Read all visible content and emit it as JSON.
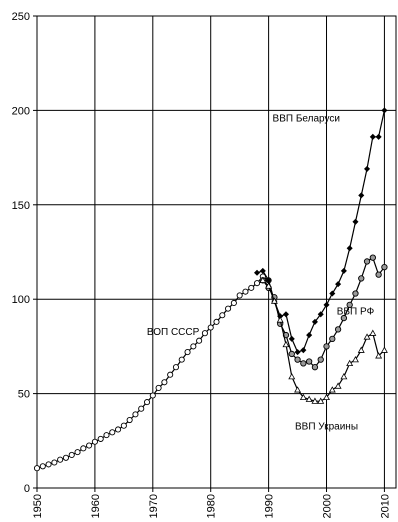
{
  "chart_data": {
    "type": "line",
    "title": "",
    "xlabel": "",
    "ylabel": "",
    "xlim": [
      1950,
      2012
    ],
    "ylim": [
      0,
      250
    ],
    "grid": true,
    "x_ticks": [
      "1950",
      "1960",
      "1970",
      "1980",
      "1990",
      "2000",
      "2010"
    ],
    "y_ticks": [
      "0",
      "50",
      "100",
      "150",
      "200",
      "250"
    ],
    "annotations": [
      {
        "text": "ВВП  Беларуси",
        "x": 1996.5,
        "y": 194
      },
      {
        "text": "ВВП РФ",
        "x": 2005,
        "y": 92
      },
      {
        "text": "ВОП СССР",
        "x": 1973.5,
        "y": 81
      },
      {
        "text": "ВВП Украины",
        "x": 2000,
        "y": 31
      }
    ],
    "series": [
      {
        "marker": "open-circle",
        "color": "#000000",
        "points": [
          [
            1950,
            10.5
          ],
          [
            1951,
            11.5
          ],
          [
            1952,
            12.5
          ],
          [
            1953,
            13.5
          ],
          [
            1954,
            15
          ],
          [
            1955,
            16
          ],
          [
            1956,
            17.5
          ],
          [
            1957,
            19
          ],
          [
            1958,
            21
          ],
          [
            1959,
            22.5
          ],
          [
            1960,
            24.5
          ],
          [
            1961,
            26
          ],
          [
            1962,
            28
          ],
          [
            1963,
            29.5
          ],
          [
            1964,
            31
          ],
          [
            1965,
            33
          ],
          [
            1966,
            36
          ],
          [
            1967,
            39
          ],
          [
            1968,
            42
          ],
          [
            1969,
            45.5
          ],
          [
            1970,
            49
          ],
          [
            1971,
            53
          ],
          [
            1972,
            56
          ],
          [
            1973,
            60
          ],
          [
            1974,
            64
          ],
          [
            1975,
            68
          ],
          [
            1976,
            72
          ],
          [
            1977,
            75
          ],
          [
            1978,
            78
          ],
          [
            1979,
            82
          ],
          [
            1980,
            85
          ],
          [
            1981,
            88
          ],
          [
            1982,
            91.5
          ],
          [
            1983,
            95
          ],
          [
            1984,
            98
          ],
          [
            1985,
            102
          ],
          [
            1986,
            104
          ],
          [
            1987,
            106
          ],
          [
            1988,
            108.5
          ],
          [
            1989,
            112
          ],
          [
            1990,
            110
          ]
        ]
      },
      {
        "marker": "filled-diamond",
        "color": "#000000",
        "points": [
          [
            1988,
            114
          ],
          [
            1989,
            115
          ],
          [
            1990,
            110
          ],
          [
            1991,
            99
          ],
          [
            1992,
            91
          ],
          [
            1993,
            92
          ],
          [
            1994,
            79
          ],
          [
            1995,
            72
          ],
          [
            1996,
            73
          ],
          [
            1997,
            81
          ],
          [
            1998,
            88
          ],
          [
            1999,
            92
          ],
          [
            2000,
            97
          ],
          [
            2001,
            103
          ],
          [
            2002,
            108
          ],
          [
            2003,
            115
          ],
          [
            2004,
            127
          ],
          [
            2005,
            141
          ],
          [
            2006,
            155
          ],
          [
            2007,
            169
          ],
          [
            2008,
            186
          ],
          [
            2009,
            186
          ],
          [
            2010,
            200
          ]
        ]
      },
      {
        "marker": "grey-circle",
        "color": "#000000",
        "points": [
          [
            1989,
            110
          ],
          [
            1990,
            106
          ],
          [
            1991,
            101
          ],
          [
            1992,
            87
          ],
          [
            1993,
            81
          ],
          [
            1994,
            71
          ],
          [
            1995,
            68
          ],
          [
            1996,
            66
          ],
          [
            1997,
            67
          ],
          [
            1998,
            64
          ],
          [
            1999,
            68
          ],
          [
            2000,
            75
          ],
          [
            2001,
            79
          ],
          [
            2002,
            84
          ],
          [
            2003,
            90
          ],
          [
            2004,
            97
          ],
          [
            2005,
            103
          ],
          [
            2006,
            111
          ],
          [
            2007,
            120
          ],
          [
            2008,
            122
          ],
          [
            2009,
            113
          ],
          [
            2010,
            117
          ]
        ]
      },
      {
        "marker": "open-triangle",
        "color": "#000000",
        "points": [
          [
            1989,
            110
          ],
          [
            1990,
            107
          ],
          [
            1991,
            99
          ],
          [
            1992,
            89
          ],
          [
            1993,
            76
          ],
          [
            1994,
            59
          ],
          [
            1995,
            52
          ],
          [
            1996,
            48
          ],
          [
            1997,
            47
          ],
          [
            1998,
            46
          ],
          [
            1999,
            46
          ],
          [
            2000,
            48
          ],
          [
            2001,
            52
          ],
          [
            2002,
            54
          ],
          [
            2003,
            59
          ],
          [
            2004,
            66
          ],
          [
            2005,
            68
          ],
          [
            2006,
            73
          ],
          [
            2007,
            80
          ],
          [
            2008,
            82
          ],
          [
            2009,
            70
          ],
          [
            2010,
            73
          ]
        ]
      }
    ]
  }
}
